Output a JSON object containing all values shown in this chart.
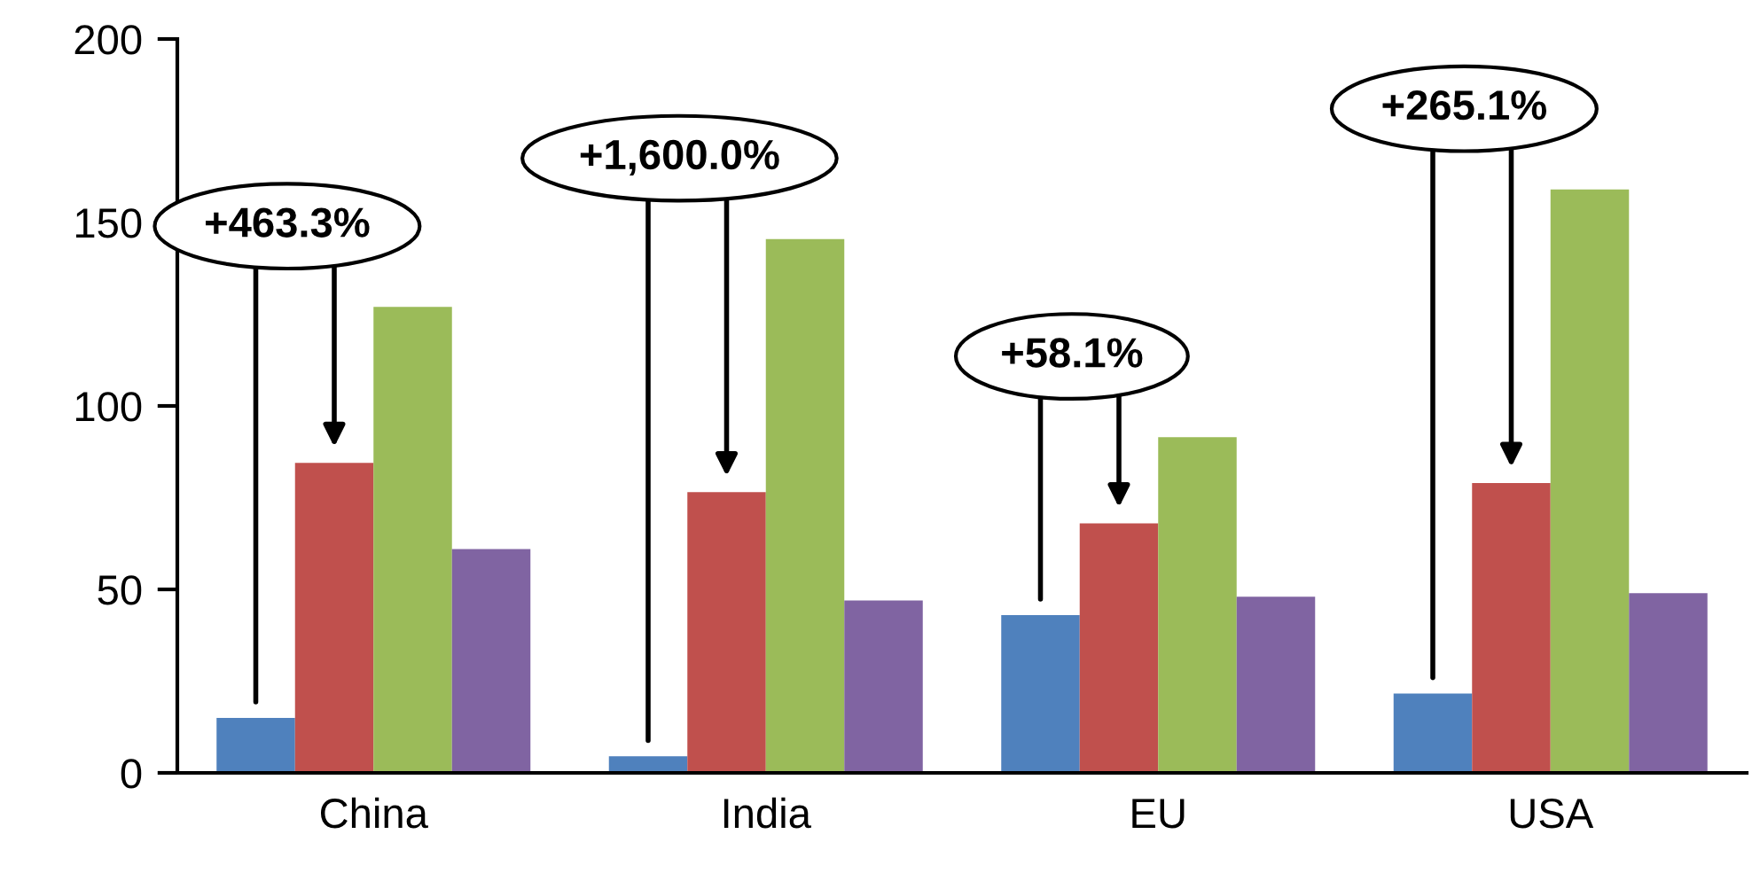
{
  "chart_data": {
    "type": "bar",
    "categories": [
      "China",
      "India",
      "EU",
      "USA"
    ],
    "series": [
      {
        "color": "#4f81bd",
        "values": [
          15,
          4.5,
          43,
          21.6
        ]
      },
      {
        "color": "#c0504d",
        "values": [
          84.5,
          76.5,
          68,
          79
        ]
      },
      {
        "color": "#9bbb59",
        "values": [
          127,
          145.5,
          91.5,
          159
        ]
      },
      {
        "color": "#8064a2",
        "values": [
          61,
          47,
          48,
          49
        ]
      }
    ],
    "annotations": [
      "+463.3%",
      "+1,600.0%",
      "+58.1%",
      "+265.1%"
    ],
    "ylim": [
      0,
      200
    ],
    "yticks": [
      0,
      50,
      100,
      150,
      200
    ],
    "grid": false,
    "legend": false
  }
}
